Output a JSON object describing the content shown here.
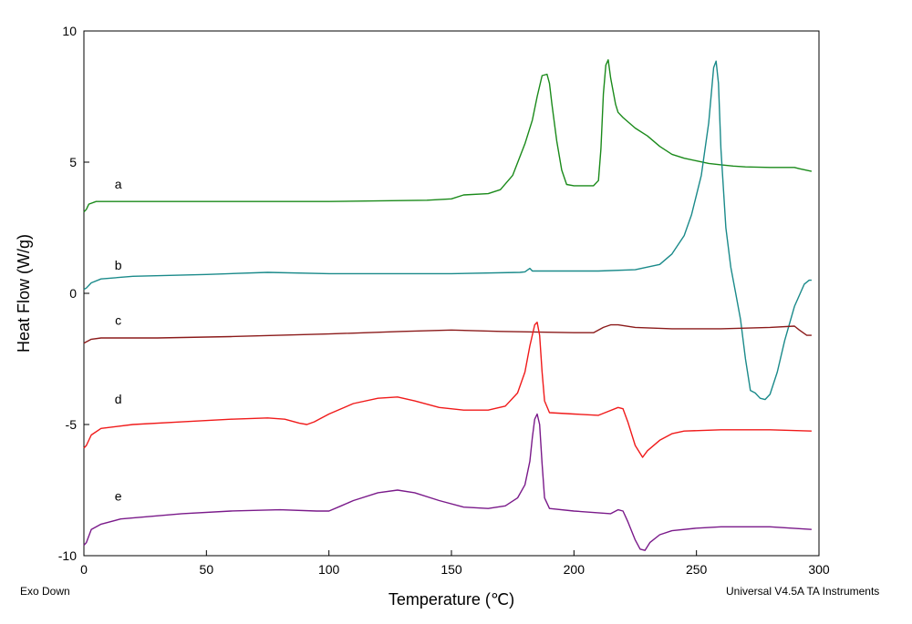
{
  "chart_data": {
    "type": "line",
    "title": "",
    "xlabel": "Temperature (℃)",
    "ylabel": "Heat Flow (W/g)",
    "xlim": [
      0,
      300
    ],
    "ylim": [
      -10,
      10
    ],
    "x_ticks": [
      0,
      50,
      100,
      150,
      200,
      250,
      300
    ],
    "y_ticks": [
      -10,
      -5,
      0,
      5,
      10
    ],
    "grid": false,
    "legend": "none",
    "series": [
      {
        "name": "a",
        "color": "#1a8a1a",
        "label_at": [
          14,
          4.0
        ],
        "points": [
          [
            0,
            3.1
          ],
          [
            1,
            3.2
          ],
          [
            2,
            3.4
          ],
          [
            5,
            3.5
          ],
          [
            20,
            3.5
          ],
          [
            50,
            3.5
          ],
          [
            100,
            3.5
          ],
          [
            140,
            3.55
          ],
          [
            150,
            3.6
          ],
          [
            155,
            3.75
          ],
          [
            165,
            3.8
          ],
          [
            170,
            3.95
          ],
          [
            175,
            4.5
          ],
          [
            180,
            5.7
          ],
          [
            183,
            6.6
          ],
          [
            185,
            7.5
          ],
          [
            187,
            8.3
          ],
          [
            189,
            8.35
          ],
          [
            190,
            8.0
          ],
          [
            191,
            7.2
          ],
          [
            193,
            5.8
          ],
          [
            195,
            4.7
          ],
          [
            197,
            4.15
          ],
          [
            200,
            4.1
          ],
          [
            205,
            4.1
          ],
          [
            208,
            4.1
          ],
          [
            210,
            4.3
          ],
          [
            211,
            5.5
          ],
          [
            212,
            7.6
          ],
          [
            213,
            8.7
          ],
          [
            214,
            8.9
          ],
          [
            215,
            8.2
          ],
          [
            217,
            7.2
          ],
          [
            218,
            6.9
          ],
          [
            220,
            6.7
          ],
          [
            225,
            6.3
          ],
          [
            230,
            6.0
          ],
          [
            235,
            5.6
          ],
          [
            240,
            5.3
          ],
          [
            245,
            5.15
          ],
          [
            250,
            5.05
          ],
          [
            255,
            4.95
          ],
          [
            260,
            4.9
          ],
          [
            265,
            4.85
          ],
          [
            270,
            4.82
          ],
          [
            280,
            4.8
          ],
          [
            290,
            4.8
          ],
          [
            292,
            4.75
          ],
          [
            297,
            4.65
          ]
        ]
      },
      {
        "name": "b",
        "color": "#1a8a8a",
        "label_at": [
          14,
          0.9
        ],
        "points": [
          [
            0,
            0.15
          ],
          [
            1,
            0.2
          ],
          [
            3,
            0.4
          ],
          [
            7,
            0.55
          ],
          [
            20,
            0.65
          ],
          [
            50,
            0.72
          ],
          [
            75,
            0.8
          ],
          [
            100,
            0.75
          ],
          [
            130,
            0.75
          ],
          [
            150,
            0.75
          ],
          [
            178,
            0.8
          ],
          [
            180,
            0.82
          ],
          [
            182,
            0.95
          ],
          [
            183,
            0.85
          ],
          [
            186,
            0.85
          ],
          [
            200,
            0.85
          ],
          [
            210,
            0.85
          ],
          [
            225,
            0.9
          ],
          [
            235,
            1.1
          ],
          [
            240,
            1.5
          ],
          [
            245,
            2.2
          ],
          [
            248,
            3.0
          ],
          [
            252,
            4.5
          ],
          [
            255,
            6.5
          ],
          [
            257,
            8.6
          ],
          [
            258,
            8.85
          ],
          [
            259,
            8.0
          ],
          [
            260,
            5.5
          ],
          [
            262,
            2.5
          ],
          [
            264,
            1.0
          ],
          [
            266,
            0.0
          ],
          [
            268,
            -1.0
          ],
          [
            270,
            -2.5
          ],
          [
            272,
            -3.7
          ],
          [
            274,
            -3.8
          ],
          [
            276,
            -4.0
          ],
          [
            278,
            -4.05
          ],
          [
            280,
            -3.85
          ],
          [
            283,
            -3.0
          ],
          [
            286,
            -1.8
          ],
          [
            290,
            -0.5
          ],
          [
            294,
            0.35
          ],
          [
            296,
            0.5
          ],
          [
            297,
            0.5
          ]
        ]
      },
      {
        "name": "c",
        "color": "#8b1a1a",
        "label_at": [
          14,
          -1.2
        ],
        "points": [
          [
            0,
            -1.9
          ],
          [
            1,
            -1.85
          ],
          [
            3,
            -1.75
          ],
          [
            7,
            -1.7
          ],
          [
            30,
            -1.7
          ],
          [
            60,
            -1.65
          ],
          [
            100,
            -1.55
          ],
          [
            130,
            -1.45
          ],
          [
            150,
            -1.4
          ],
          [
            170,
            -1.45
          ],
          [
            200,
            -1.5
          ],
          [
            208,
            -1.5
          ],
          [
            212,
            -1.3
          ],
          [
            215,
            -1.2
          ],
          [
            218,
            -1.2
          ],
          [
            225,
            -1.3
          ],
          [
            240,
            -1.35
          ],
          [
            260,
            -1.35
          ],
          [
            280,
            -1.3
          ],
          [
            290,
            -1.25
          ],
          [
            292,
            -1.4
          ],
          [
            295,
            -1.6
          ],
          [
            297,
            -1.6
          ]
        ]
      },
      {
        "name": "d",
        "color": "#f01a1a",
        "label_at": [
          14,
          -4.2
        ],
        "points": [
          [
            0,
            -5.9
          ],
          [
            1,
            -5.8
          ],
          [
            3,
            -5.4
          ],
          [
            7,
            -5.15
          ],
          [
            20,
            -5.0
          ],
          [
            40,
            -4.9
          ],
          [
            60,
            -4.8
          ],
          [
            75,
            -4.75
          ],
          [
            82,
            -4.8
          ],
          [
            88,
            -4.95
          ],
          [
            91,
            -5.0
          ],
          [
            94,
            -4.9
          ],
          [
            100,
            -4.6
          ],
          [
            110,
            -4.2
          ],
          [
            120,
            -4.0
          ],
          [
            128,
            -3.95
          ],
          [
            135,
            -4.1
          ],
          [
            145,
            -4.35
          ],
          [
            155,
            -4.45
          ],
          [
            165,
            -4.45
          ],
          [
            172,
            -4.3
          ],
          [
            177,
            -3.8
          ],
          [
            180,
            -3.0
          ],
          [
            182,
            -2.0
          ],
          [
            184,
            -1.2
          ],
          [
            185,
            -1.1
          ],
          [
            186,
            -1.6
          ],
          [
            187,
            -3.0
          ],
          [
            188,
            -4.1
          ],
          [
            190,
            -4.55
          ],
          [
            200,
            -4.6
          ],
          [
            210,
            -4.65
          ],
          [
            214,
            -4.5
          ],
          [
            218,
            -4.35
          ],
          [
            220,
            -4.4
          ],
          [
            222,
            -4.9
          ],
          [
            225,
            -5.8
          ],
          [
            228,
            -6.25
          ],
          [
            230,
            -6.0
          ],
          [
            235,
            -5.6
          ],
          [
            240,
            -5.35
          ],
          [
            245,
            -5.25
          ],
          [
            260,
            -5.2
          ],
          [
            280,
            -5.2
          ],
          [
            297,
            -5.25
          ]
        ]
      },
      {
        "name": "e",
        "color": "#7a1a8a",
        "label_at": [
          14,
          -7.9
        ],
        "points": [
          [
            0,
            -9.6
          ],
          [
            1,
            -9.5
          ],
          [
            3,
            -9.0
          ],
          [
            7,
            -8.8
          ],
          [
            15,
            -8.6
          ],
          [
            40,
            -8.4
          ],
          [
            60,
            -8.3
          ],
          [
            80,
            -8.25
          ],
          [
            95,
            -8.3
          ],
          [
            100,
            -8.3
          ],
          [
            105,
            -8.1
          ],
          [
            110,
            -7.9
          ],
          [
            120,
            -7.6
          ],
          [
            128,
            -7.5
          ],
          [
            135,
            -7.6
          ],
          [
            145,
            -7.9
          ],
          [
            155,
            -8.15
          ],
          [
            165,
            -8.2
          ],
          [
            172,
            -8.1
          ],
          [
            177,
            -7.8
          ],
          [
            180,
            -7.3
          ],
          [
            182,
            -6.4
          ],
          [
            183,
            -5.5
          ],
          [
            184,
            -4.8
          ],
          [
            185,
            -4.6
          ],
          [
            186,
            -5.0
          ],
          [
            187,
            -6.5
          ],
          [
            188,
            -7.8
          ],
          [
            190,
            -8.2
          ],
          [
            200,
            -8.3
          ],
          [
            215,
            -8.4
          ],
          [
            218,
            -8.25
          ],
          [
            220,
            -8.3
          ],
          [
            222,
            -8.7
          ],
          [
            225,
            -9.4
          ],
          [
            227,
            -9.75
          ],
          [
            229,
            -9.8
          ],
          [
            231,
            -9.5
          ],
          [
            235,
            -9.2
          ],
          [
            240,
            -9.05
          ],
          [
            250,
            -8.95
          ],
          [
            260,
            -8.9
          ],
          [
            280,
            -8.9
          ],
          [
            297,
            -9.0
          ]
        ]
      }
    ]
  },
  "footer": {
    "left": "Exo Down",
    "right": "Universal V4.5A TA Instruments"
  }
}
